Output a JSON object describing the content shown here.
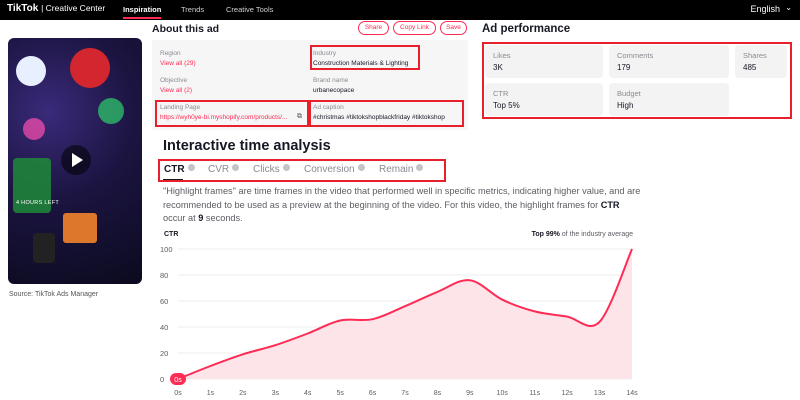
{
  "header": {
    "logo": "TikTok",
    "logo_sub": "Creative Center",
    "nav": [
      "Inspiration",
      "Trends",
      "Creative Tools"
    ],
    "language": "English"
  },
  "video": {
    "caption": "4 HOURS LEFT",
    "source": "Source: TikTok Ads Manager"
  },
  "about": {
    "title": "About this ad",
    "buttons": [
      "Share",
      "Copy Link",
      "Save"
    ],
    "region_label": "Region",
    "region_value": "View all (29)",
    "industry_label": "Industry",
    "industry_value": "Construction Materials & Lighting",
    "objective_label": "Objective",
    "objective_value": "View all (2)",
    "brand_label": "Brand name",
    "brand_value": "urbanecopace",
    "landing_label": "Landing Page",
    "landing_value": "https://wyh0ye-bi.myshopify.com/products/...",
    "caption_label": "Ad caption",
    "caption_value": "#christmas #tiktokshopblackfriday #tiktokshop"
  },
  "performance": {
    "title": "Ad performance",
    "cards": [
      {
        "label": "Likes",
        "value": "3K"
      },
      {
        "label": "Comments",
        "value": "179"
      },
      {
        "label": "Shares",
        "value": "485"
      },
      {
        "label": "CTR",
        "value": "Top 5%"
      },
      {
        "label": "Budget",
        "value": "High"
      }
    ]
  },
  "analysis": {
    "title": "Interactive time analysis",
    "tabs": [
      "CTR",
      "CVR",
      "Clicks",
      "Conversion",
      "Remain"
    ],
    "desc_1": "\"Highlight frames\" are time frames in the video that performed well in specific metrics, indicating higher value, and are recommended to be used as a preview at the beginning of the video. For this video, the highlight frames for ",
    "desc_metric": "CTR",
    "desc_2": " occur at ",
    "desc_sec": "9",
    "desc_3": " seconds.",
    "chart_label": "CTR",
    "top_prefix": "Top 99%",
    "top_suffix": " of the industry average"
  },
  "chart_data": {
    "type": "area",
    "x": [
      "0s",
      "1s",
      "2s",
      "3s",
      "4s",
      "5s",
      "6s",
      "7s",
      "8s",
      "9s",
      "10s",
      "11s",
      "12s",
      "13s",
      "14s"
    ],
    "values": [
      0,
      10,
      19,
      26,
      35,
      45,
      46,
      56,
      67,
      76,
      61,
      52,
      48,
      44,
      100
    ],
    "ylim": [
      0,
      100
    ],
    "yticks": [
      0,
      20,
      40,
      60,
      80,
      100
    ],
    "start_badge": "0s",
    "color": "#fe2c55",
    "fill": "#fde4e8",
    "grid": true
  }
}
